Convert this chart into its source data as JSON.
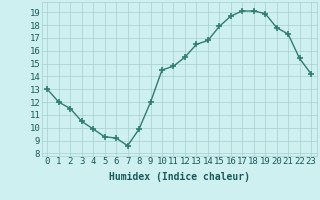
{
  "x": [
    0,
    1,
    2,
    3,
    4,
    5,
    6,
    7,
    8,
    9,
    10,
    11,
    12,
    13,
    14,
    15,
    16,
    17,
    18,
    19,
    20,
    21,
    22,
    23
  ],
  "y": [
    13,
    12,
    11.5,
    10.5,
    9.9,
    9.3,
    9.2,
    8.6,
    9.9,
    12,
    14.5,
    14.8,
    15.5,
    16.5,
    16.8,
    17.9,
    18.7,
    19.1,
    19.1,
    18.9,
    17.8,
    17.3,
    15.4,
    14.2
  ],
  "line_color": "#2e7d6e",
  "marker": "+",
  "marker_size": 4,
  "marker_lw": 1.2,
  "bg_color": "#cff0f0",
  "grid_color": "#a8cece",
  "xlabel": "Humidex (Indice chaleur)",
  "ylabel_ticks": [
    8,
    9,
    10,
    11,
    12,
    13,
    14,
    15,
    16,
    17,
    18,
    19
  ],
  "ylim": [
    7.8,
    19.8
  ],
  "xlim": [
    -0.5,
    23.5
  ],
  "xticks": [
    0,
    1,
    2,
    3,
    4,
    5,
    6,
    7,
    8,
    9,
    10,
    11,
    12,
    13,
    14,
    15,
    16,
    17,
    18,
    19,
    20,
    21,
    22,
    23
  ],
  "xlabel_fontsize": 7,
  "tick_fontsize": 6.5,
  "label_color": "#1a5a5a",
  "linewidth": 1.0
}
